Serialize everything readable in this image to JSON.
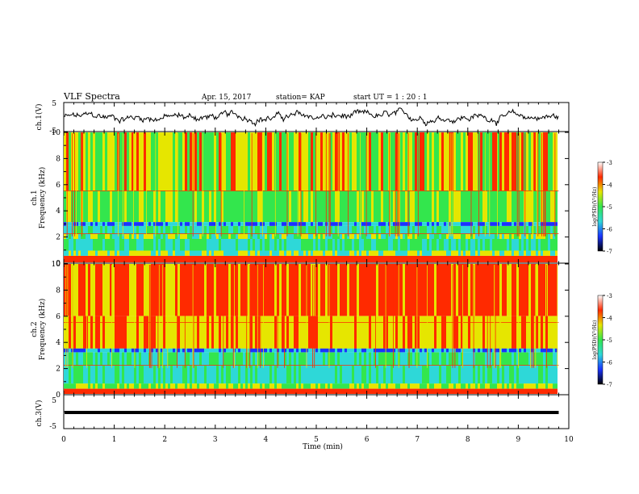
{
  "header": {
    "title": "VLF Spectra",
    "date": "Apr. 15, 2017",
    "station": "station= KAP",
    "start": "start  UT =   1 : 20 : 1"
  },
  "chart_data": [
    {
      "type": "line",
      "name": "ch1-waveform",
      "ylabel": "ch.1(V)",
      "yticks": [
        "5",
        "-5"
      ],
      "ylim": [
        -5,
        5
      ],
      "xlim": [
        0,
        10
      ]
    },
    {
      "type": "heatmap",
      "name": "ch1-spectrogram",
      "ylabel": "ch.1\nFrequency (kHz)",
      "ylabel_lines": [
        "ch.1",
        "Frequency (kHz)"
      ],
      "yticks": [
        "0",
        "2",
        "4",
        "6",
        "8",
        "10"
      ],
      "ylim": [
        0,
        10
      ],
      "xlim": [
        0,
        9.8
      ],
      "colorbar": {
        "label": "log(PSD)(V²/Hz)",
        "ticks": [
          "-3",
          "-4",
          "-5",
          "-6",
          "-7"
        ],
        "range": [
          -7,
          -3
        ]
      }
    },
    {
      "type": "heatmap",
      "name": "ch2-spectrogram",
      "ylabel": "ch.2\nFrequency (kHz)",
      "ylabel_lines": [
        "ch.2",
        "Frequency (kHz)"
      ],
      "yticks": [
        "0",
        "2",
        "4",
        "6",
        "8",
        "10"
      ],
      "ylim": [
        0,
        10
      ],
      "xlim": [
        0,
        9.8
      ],
      "colorbar": {
        "label": "log(PSD)(V²/Hz)",
        "ticks": [
          "-3",
          "-4",
          "-5",
          "-6",
          "-7"
        ],
        "range": [
          -7,
          -3
        ]
      }
    },
    {
      "type": "line",
      "name": "ch3-waveform",
      "ylabel": "ch.3(V)",
      "yticks": [
        "5",
        "-5"
      ],
      "ylim": [
        -5,
        5
      ],
      "xlim": [
        0,
        10
      ],
      "x": [
        0,
        9.8
      ],
      "y": [
        0,
        0
      ]
    }
  ],
  "xaxis": {
    "label": "Time  (min)",
    "ticks": [
      "0",
      "1",
      "2",
      "3",
      "4",
      "5",
      "6",
      "7",
      "8",
      "9",
      "10"
    ],
    "range": [
      0,
      10
    ]
  },
  "colors": {
    "red": "#ff2a00",
    "yellow": "#e6e600",
    "green": "#33e64d",
    "cyan": "#2ed8d8",
    "blue": "#1a33ff"
  }
}
